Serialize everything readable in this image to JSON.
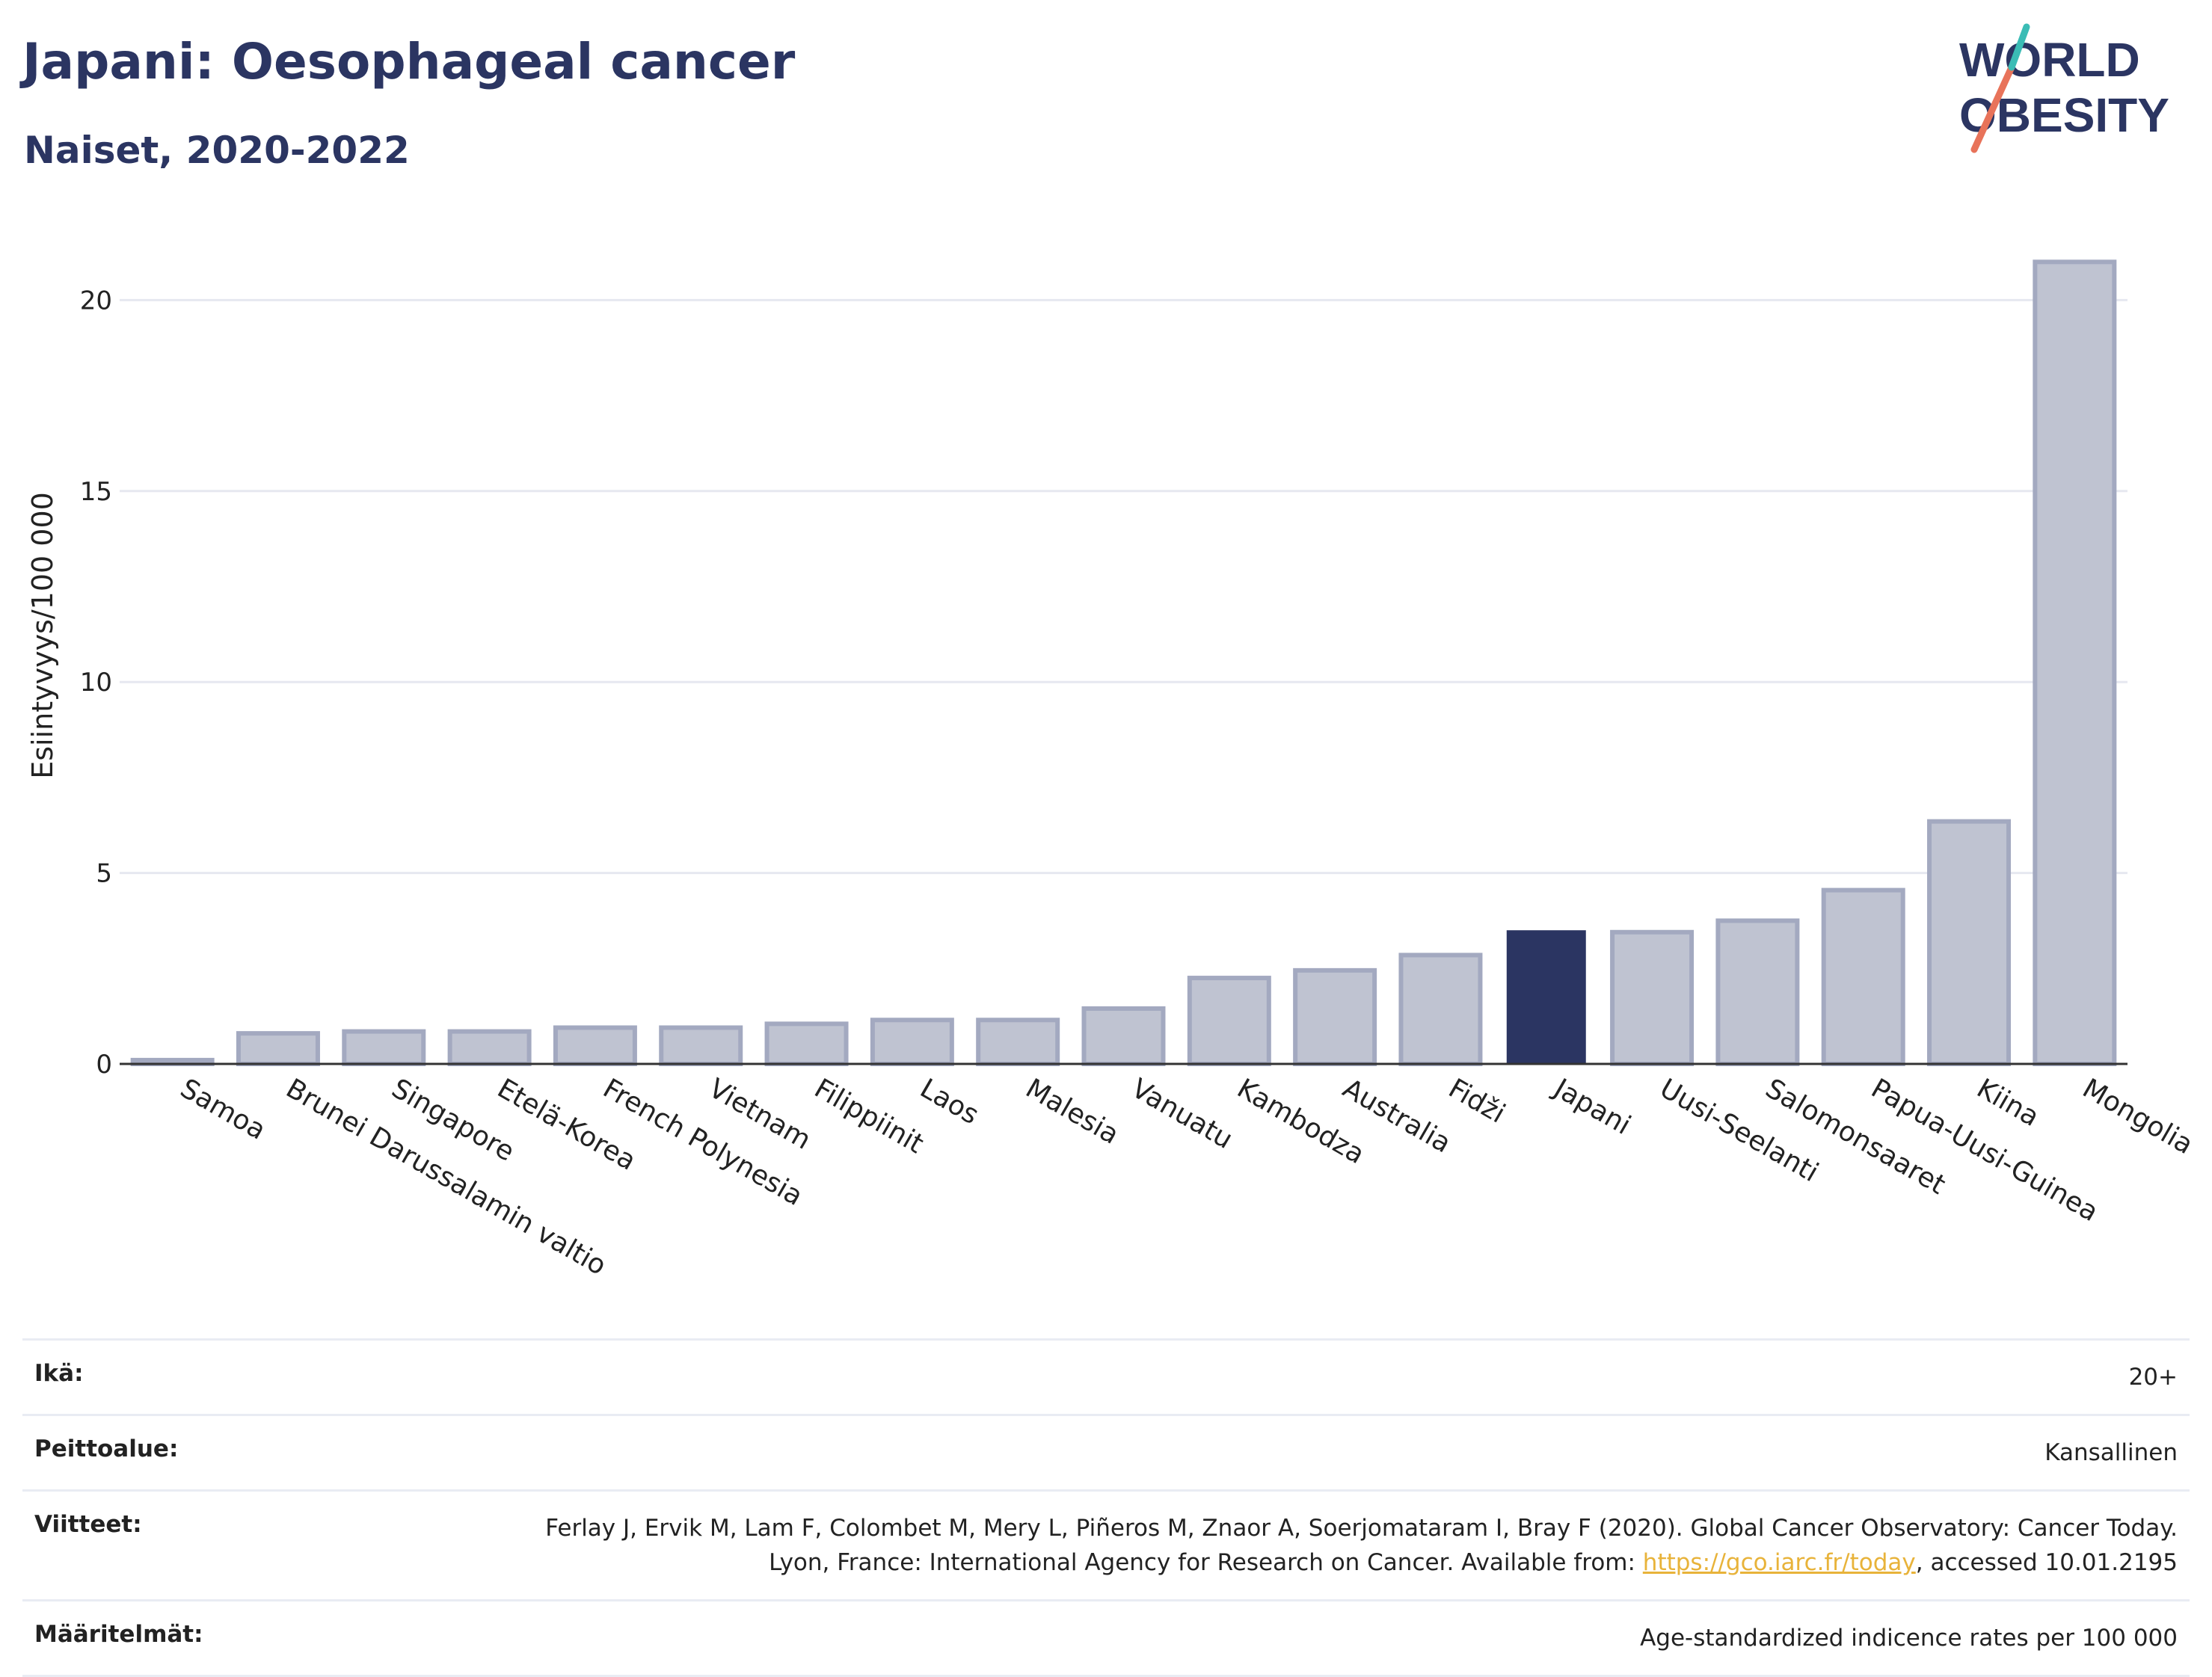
{
  "header": {
    "title": "Japani: Oesophageal cancer",
    "subtitle": "Naiset, 2020-2022"
  },
  "logo": {
    "line1": "WORLD",
    "line2": "OBESITY"
  },
  "chart_data": {
    "type": "bar",
    "title": "Japani: Oesophageal cancer",
    "subtitle": "Naiset, 2020-2022",
    "ylabel": "Esiintyvyys/100 000",
    "xlabel": "",
    "ylim": [
      0,
      22
    ],
    "yticks": [
      0,
      5,
      10,
      15,
      20
    ],
    "grid": true,
    "categories": [
      "Samoa",
      "Brunei Darussalamin valtio",
      "Singapore",
      "Etelä-Korea",
      "French Polynesia",
      "Vietnam",
      "Filippiinit",
      "Laos",
      "Malesia",
      "Vanuatu",
      "Kambodza",
      "Australia",
      "Fidži",
      "Japani",
      "Uusi-Seelanti",
      "Salomonsaaret",
      "Papua-Uusi-Guinea",
      "Kiina",
      "Mongolia"
    ],
    "values": [
      0.1,
      0.8,
      0.85,
      0.85,
      0.95,
      0.95,
      1.05,
      1.15,
      1.15,
      1.45,
      2.25,
      2.45,
      2.85,
      3.5,
      3.45,
      3.75,
      4.55,
      6.35,
      21.0
    ],
    "highlight": "Japani",
    "colors": {
      "bar": "#bfc3d1",
      "bar_border": "#a3a9c0",
      "highlight": "#2b3562",
      "grid": "#e6e8f0",
      "axis": "#333333"
    }
  },
  "info": {
    "rows": [
      {
        "key": "Ikä:",
        "value": "20+"
      },
      {
        "key": "Peittoalue:",
        "value": "Kansallinen"
      },
      {
        "key": "Viitteet:",
        "value_before": "Ferlay J, Ervik M, Lam F, Colombet M, Mery L, Piñeros M, Znaor A, Soerjomataram I, Bray F (2020). Global Cancer Observatory: Cancer Today. Lyon, France: International Agency for Research on Cancer. Available from: ",
        "link": "https://gco.iarc.fr/today",
        "value_after": ", accessed 10.01.2195"
      },
      {
        "key": "Määritelmät:",
        "value": "Age-standardized indicence rates per 100 000"
      }
    ]
  }
}
